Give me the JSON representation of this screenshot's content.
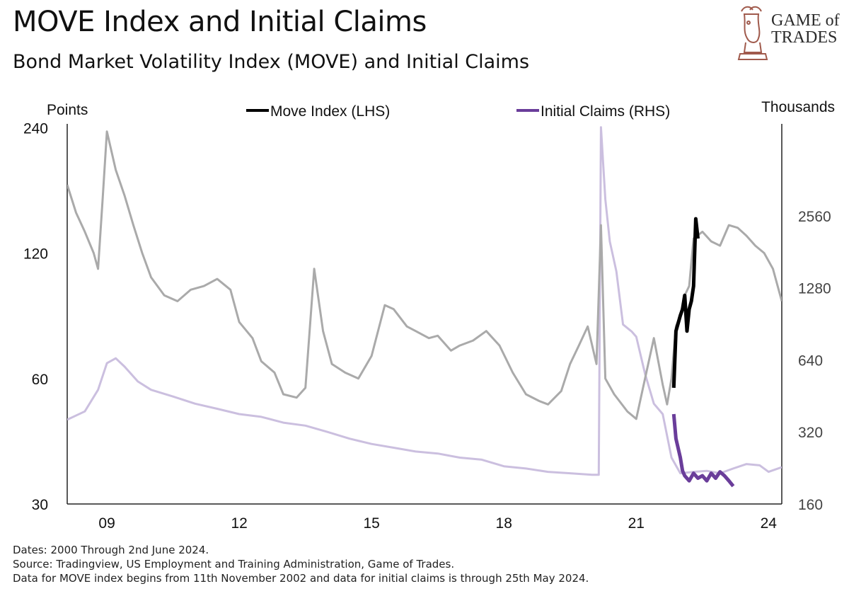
{
  "header": {
    "title": "MOVE Index and Initial Claims",
    "subtitle": "Bond Market Volatility Index (MOVE) and Initial Claims"
  },
  "logo": {
    "line1": "GAME of",
    "line2": "TRADES"
  },
  "footer": {
    "dates": "Dates: 2000 Through 2nd June 2024.",
    "source": "Source: Tradingview, US Employment and Training Administration, Game of Trades.",
    "note": "Data for MOVE index begins from 11th November 2002 and data for initial claims is through 25th May 2024."
  },
  "colors": {
    "move_muted": "#aaaaaa",
    "claims_muted": "#cbbfdf",
    "move_highlight": "#000000",
    "claims_highlight": "#6a3d9a"
  },
  "chart_data": {
    "type": "line",
    "left_axis": {
      "label": "Points",
      "scale": "log",
      "ticks": [
        "240",
        "120",
        "60",
        "30"
      ],
      "tick_values": [
        240,
        120,
        60,
        30
      ],
      "range": [
        30,
        245
      ]
    },
    "right_axis": {
      "label": "Thousands",
      "scale": "log",
      "ticks": [
        "2560",
        "1280",
        "640",
        "320",
        "160"
      ],
      "tick_values": [
        2560,
        1280,
        640,
        320,
        160
      ],
      "range": [
        160,
        6200
      ]
    },
    "x_axis": {
      "ticks": [
        "09",
        "12",
        "15",
        "18",
        "21",
        "24"
      ],
      "tick_values": [
        2009,
        2012,
        2015,
        2018,
        2021,
        2024
      ],
      "range": [
        2008.1,
        2024.3
      ]
    },
    "legend": [
      "Move Index (LHS)",
      "Initial Claims (RHS)"
    ],
    "legend_placement": "top-center",
    "grid": false,
    "series": [
      {
        "name": "Move Index (LHS)",
        "axis": "left",
        "x": [
          2008.1,
          2008.3,
          2008.5,
          2008.7,
          2008.8,
          2008.9,
          2009.0,
          2009.2,
          2009.4,
          2009.6,
          2009.8,
          2010.0,
          2010.3,
          2010.6,
          2010.9,
          2011.2,
          2011.5,
          2011.8,
          2012.0,
          2012.3,
          2012.5,
          2012.8,
          2013.0,
          2013.3,
          2013.5,
          2013.7,
          2013.9,
          2014.1,
          2014.4,
          2014.7,
          2015.0,
          2015.3,
          2015.5,
          2015.8,
          2016.0,
          2016.3,
          2016.5,
          2016.8,
          2017.0,
          2017.3,
          2017.6,
          2017.9,
          2018.2,
          2018.5,
          2018.8,
          2019.0,
          2019.3,
          2019.5,
          2019.7,
          2019.9,
          2020.1,
          2020.2,
          2020.3,
          2020.5,
          2020.8,
          2021.0,
          2021.2,
          2021.4,
          2021.6,
          2021.7,
          2021.8,
          2021.9,
          2022.0,
          2022.1,
          2022.2,
          2022.3,
          2022.5,
          2022.7,
          2022.9,
          2023.1,
          2023.3,
          2023.5,
          2023.7,
          2023.9,
          2024.1,
          2024.3
        ],
        "y": [
          175,
          150,
          135,
          120,
          110,
          160,
          235,
          190,
          165,
          140,
          120,
          105,
          95,
          92,
          98,
          100,
          104,
          98,
          82,
          75,
          66,
          62,
          55,
          54,
          57,
          110,
          78,
          65,
          62,
          60,
          68,
          90,
          88,
          80,
          78,
          75,
          76,
          70,
          72,
          74,
          78,
          72,
          62,
          55,
          53,
          52,
          56,
          65,
          72,
          80,
          65,
          140,
          60,
          55,
          50,
          48,
          60,
          75,
          58,
          52,
          60,
          80,
          85,
          95,
          100,
          130,
          135,
          128,
          125,
          140,
          138,
          132,
          125,
          120,
          110,
          92
        ]
      },
      {
        "name": "Initial Claims (RHS)",
        "axis": "right",
        "x": [
          2008.1,
          2008.5,
          2008.8,
          2009.0,
          2009.2,
          2009.4,
          2009.7,
          2010.0,
          2010.5,
          2011.0,
          2011.5,
          2012.0,
          2012.5,
          2013.0,
          2013.5,
          2014.0,
          2014.5,
          2015.0,
          2015.5,
          2016.0,
          2016.5,
          2017.0,
          2017.5,
          2018.0,
          2018.5,
          2019.0,
          2019.5,
          2020.0,
          2020.15,
          2020.2,
          2020.3,
          2020.4,
          2020.55,
          2020.7,
          2020.9,
          2021.0,
          2021.2,
          2021.4,
          2021.6,
          2021.8,
          2022.0,
          2022.3,
          2022.6,
          2022.9,
          2023.2,
          2023.5,
          2023.8,
          2024.0,
          2024.3
        ],
        "y": [
          360,
          390,
          480,
          620,
          650,
          600,
          520,
          480,
          450,
          420,
          400,
          380,
          370,
          350,
          340,
          320,
          300,
          285,
          275,
          265,
          260,
          250,
          245,
          230,
          225,
          218,
          215,
          212,
          212,
          6000,
          3000,
          2000,
          1500,
          900,
          840,
          800,
          560,
          420,
          380,
          250,
          215,
          218,
          220,
          215,
          225,
          235,
          232,
          218,
          228
        ]
      }
    ],
    "highlight": [
      {
        "name": "Move Index (LHS)",
        "x": [
          2021.85,
          2021.9,
          2022.0,
          2022.05,
          2022.1,
          2022.15,
          2022.2,
          2022.25,
          2022.3,
          2022.35,
          2022.4
        ],
        "y": [
          57,
          78,
          85,
          88,
          95,
          78,
          88,
          92,
          100,
          145,
          130
        ]
      },
      {
        "name": "Initial Claims (RHS)",
        "x": [
          2021.85,
          2021.9,
          2022.0,
          2022.05,
          2022.1,
          2022.2,
          2022.3,
          2022.4,
          2022.5,
          2022.6,
          2022.7,
          2022.8,
          2022.9,
          2023.0,
          2023.1,
          2023.2
        ],
        "y": [
          380,
          300,
          250,
          220,
          210,
          200,
          215,
          205,
          210,
          200,
          215,
          205,
          218,
          210,
          200,
          190
        ]
      }
    ]
  }
}
